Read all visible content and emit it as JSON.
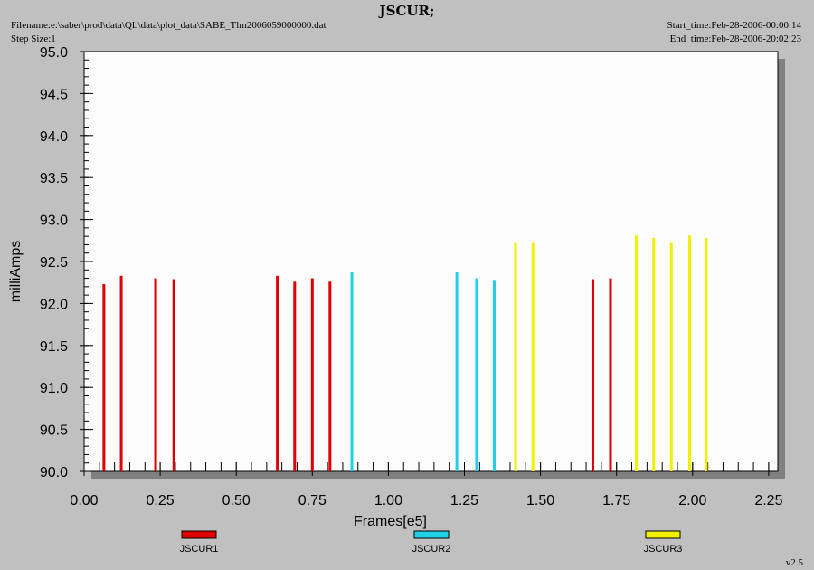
{
  "header": {
    "filename": "Filename:e:\\saber\\prod\\data\\QL\\data\\plot_data\\SABE_Tlm2006059000000.dat",
    "step_size": "Step Size:1",
    "start_time": "Start_time:Feb-28-2006-00:00:14",
    "end_time": "End_time:Feb-28-2006-20:02:23",
    "version": "v2.5"
  },
  "colors": {
    "JSCUR1": "#e00000",
    "JSCUR2": "#20d0e8",
    "JSCUR3": "#f0f000",
    "plot_bg": "#fcfcfc",
    "shadow": "#808080"
  },
  "chart_data": {
    "type": "bar",
    "title": "JSCUR;",
    "xlabel": "Frames[e5]",
    "ylabel": "milliAmps",
    "xlim": [
      0.0,
      2.28
    ],
    "ylim": [
      90.0,
      95.0
    ],
    "x_ticks": [
      "0.00",
      "0.25",
      "0.50",
      "0.75",
      "1.00",
      "1.25",
      "1.50",
      "1.75",
      "2.00",
      "2.25"
    ],
    "y_ticks": [
      "90.0",
      "90.5",
      "91.0",
      "91.5",
      "92.0",
      "92.5",
      "93.0",
      "93.5",
      "94.0",
      "94.5",
      "95.0"
    ],
    "grid": false,
    "legend_position": "bottom",
    "series": [
      {
        "name": "JSCUR1",
        "x": [
          0.065,
          0.122,
          0.235,
          0.295,
          0.635,
          0.692,
          0.75,
          0.808,
          1.672,
          1.73
        ],
        "y": [
          92.23,
          92.33,
          92.3,
          92.29,
          92.33,
          92.26,
          92.3,
          92.26,
          92.29,
          92.3
        ]
      },
      {
        "name": "JSCUR2",
        "x": [
          0.88,
          1.225,
          1.29,
          1.348
        ],
        "y": [
          92.37,
          92.37,
          92.3,
          92.27
        ]
      },
      {
        "name": "JSCUR3",
        "x": [
          1.418,
          1.475,
          1.815,
          1.872,
          1.93,
          1.99,
          2.045
        ],
        "y": [
          92.72,
          92.72,
          92.81,
          92.78,
          92.72,
          92.81,
          92.78
        ]
      }
    ]
  }
}
